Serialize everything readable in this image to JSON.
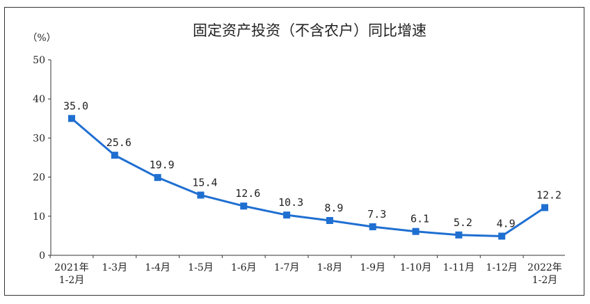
{
  "chart_data": {
    "type": "line",
    "title": "固定资产投资（不含农户）同比增速",
    "unit_label": "（%）",
    "ylim": [
      0,
      50
    ],
    "yticks": [
      "0",
      "10",
      "20",
      "30",
      "40",
      "50"
    ],
    "categories": [
      [
        "2021年",
        "1-2月"
      ],
      [
        "1-3月"
      ],
      [
        "1-4月"
      ],
      [
        "1-5月"
      ],
      [
        "1-6月"
      ],
      [
        "1-7月"
      ],
      [
        "1-8月"
      ],
      [
        "1-9月"
      ],
      [
        "1-10月"
      ],
      [
        "1-11月"
      ],
      [
        "1-12月"
      ],
      [
        "2022年",
        "1-2月"
      ]
    ],
    "series": [
      {
        "values": [
          35.0,
          25.6,
          19.9,
          15.4,
          12.6,
          10.3,
          8.9,
          7.3,
          6.1,
          5.2,
          4.9,
          12.2
        ],
        "labels": [
          "35.0",
          "25.6",
          "19.9",
          "15.4",
          "12.6",
          "10.3",
          "8.9",
          "7.3",
          "6.1",
          "5.2",
          "4.9",
          "12.2"
        ],
        "color": "#1f6fd1"
      }
    ],
    "grid": false,
    "legend": "none"
  }
}
